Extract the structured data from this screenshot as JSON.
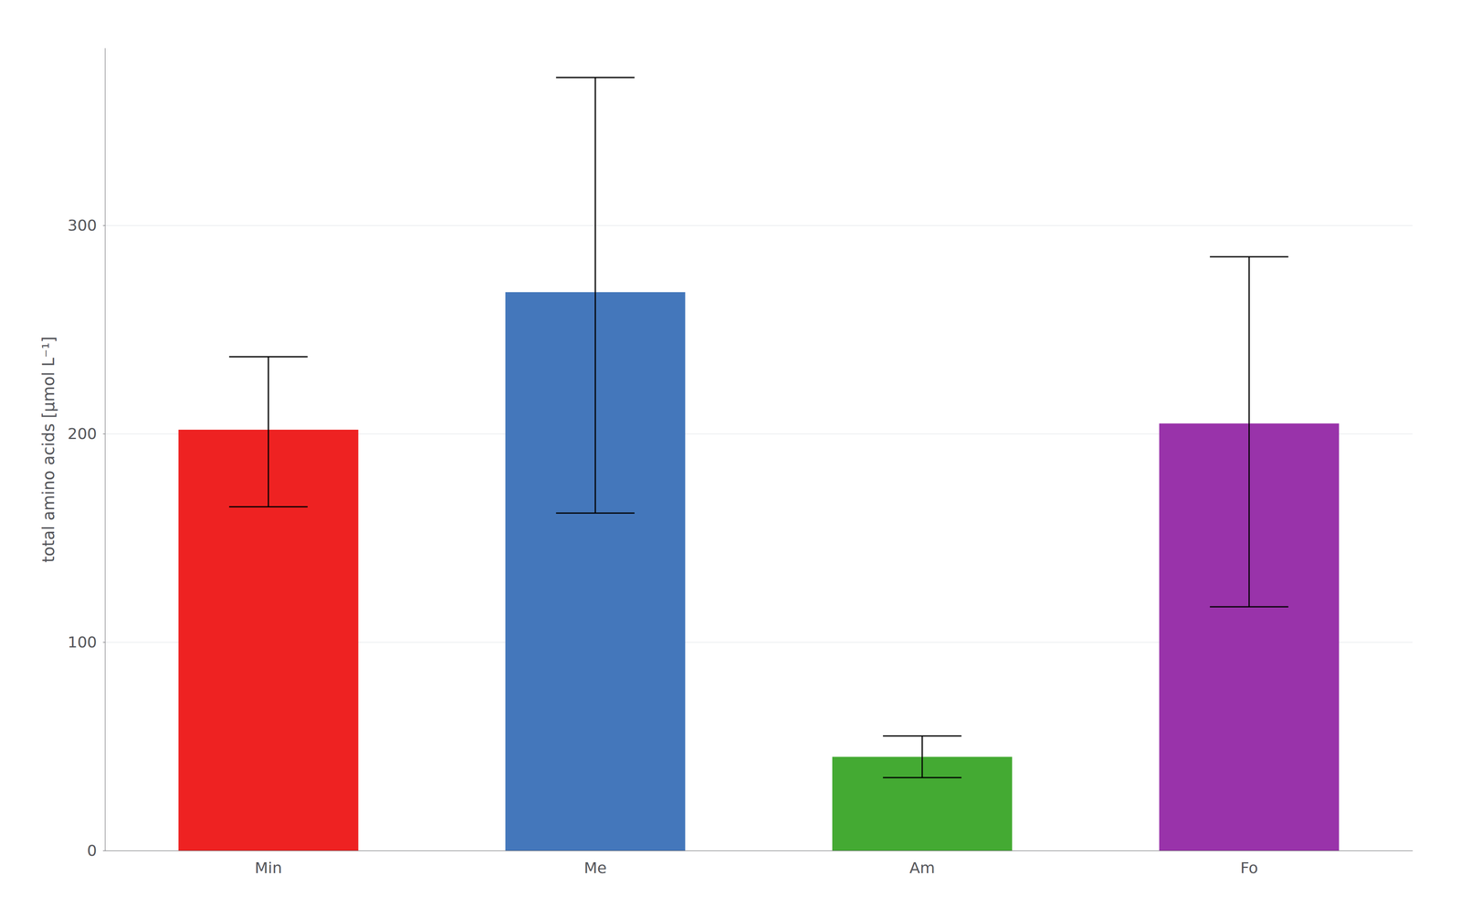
{
  "chart_data": {
    "type": "bar",
    "categories": [
      "Min",
      "Me",
      "Am",
      "Fo"
    ],
    "values": [
      202,
      268,
      45,
      205
    ],
    "err_upper": [
      35,
      103,
      10,
      80
    ],
    "err_lower": [
      37,
      106,
      10,
      88
    ],
    "colors": [
      "#EE2222",
      "#4477BB",
      "#44AA33",
      "#9933AA"
    ],
    "ylabel": "total amino acids [μmol L⁻¹]",
    "ylim": [
      0,
      385
    ],
    "yticks": [
      0,
      100,
      200,
      300
    ],
    "grid": true
  }
}
